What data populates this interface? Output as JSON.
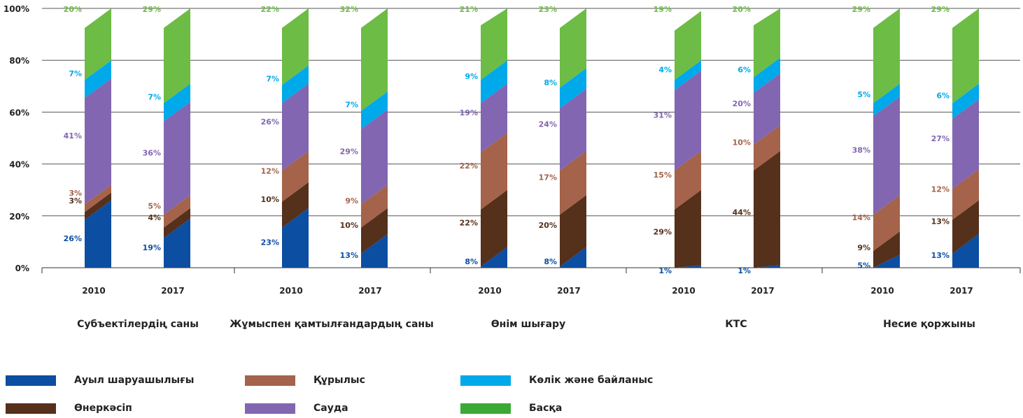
{
  "chart_data": {
    "type": "bar",
    "subtype": "stacked-100",
    "title": "",
    "xlabel": "",
    "ylabel": "",
    "ylim": [
      0,
      100
    ],
    "yticks": [
      "0%",
      "20%",
      "40%",
      "60%",
      "80%",
      "100%"
    ],
    "grid": true,
    "legend_position": "bottom",
    "groups": [
      {
        "label": "Субъектілердің саны",
        "years": [
          "2010",
          "2017"
        ]
      },
      {
        "label": "Жұмыспен қамтылғандардың саны",
        "years": [
          "2010",
          "2017"
        ]
      },
      {
        "label": "Өнім шығару",
        "years": [
          "2010",
          "2017"
        ]
      },
      {
        "label": "КТС",
        "years": [
          "2010",
          "2017"
        ]
      },
      {
        "label": "Несие қоржыны",
        "years": [
          "2010",
          "2017"
        ]
      }
    ],
    "categories": [
      "Субъектілердің саны 2010",
      "Субъектілердің саны 2017",
      "Жұмыспен қамтылғандардың саны 2010",
      "Жұмыспен қамтылғандардың саны 2017",
      "Өнім шығару 2010",
      "Өнім шығару 2017",
      "КТС 2010",
      "КТС 2017",
      "Несие қоржыны 2010",
      "Несие қоржыны 2017"
    ],
    "series": [
      {
        "name": "Ауыл шаруашылығы",
        "color": "#0c4ea2",
        "label_color": "#0c4ea2",
        "values": [
          26,
          19,
          23,
          13,
          8,
          8,
          1,
          1,
          5,
          13
        ]
      },
      {
        "name": "Өнеркәсіп",
        "color": "#55301b",
        "label_color": "#55301b",
        "values": [
          3,
          4,
          10,
          10,
          22,
          20,
          29,
          44,
          9,
          13
        ]
      },
      {
        "name": "Құрылыс",
        "color": "#a4634a",
        "label_color": "#a4634a",
        "values": [
          3,
          5,
          12,
          9,
          22,
          17,
          15,
          10,
          14,
          12
        ]
      },
      {
        "name": "Сауда",
        "color": "#8266b1",
        "label_color": "#8266b1",
        "values": [
          41,
          36,
          26,
          29,
          19,
          24,
          31,
          20,
          38,
          27
        ]
      },
      {
        "name": "Көлік және байланыс",
        "color": "#00a9e9",
        "label_color": "#00a9e9",
        "values": [
          7,
          7,
          7,
          7,
          9,
          8,
          4,
          6,
          5,
          6
        ]
      },
      {
        "name": "Басқа",
        "color": "#6dbc45",
        "label_color": "#6dbc45",
        "values": [
          20,
          29,
          22,
          32,
          21,
          23,
          19,
          20,
          29,
          29
        ]
      }
    ]
  },
  "legend": [
    {
      "name": "Ауыл шаруашылығы",
      "color": "#0c4ea2"
    },
    {
      "name": "Құрылыс",
      "color": "#a4634a"
    },
    {
      "name": "Көлік және байланыс",
      "color": "#00a9e9"
    },
    {
      "name": "Өнеркәсіп",
      "color": "#55301b"
    },
    {
      "name": "Сауда",
      "color": "#8266b1"
    },
    {
      "name": "Басқа",
      "color": "#3aa935"
    }
  ]
}
